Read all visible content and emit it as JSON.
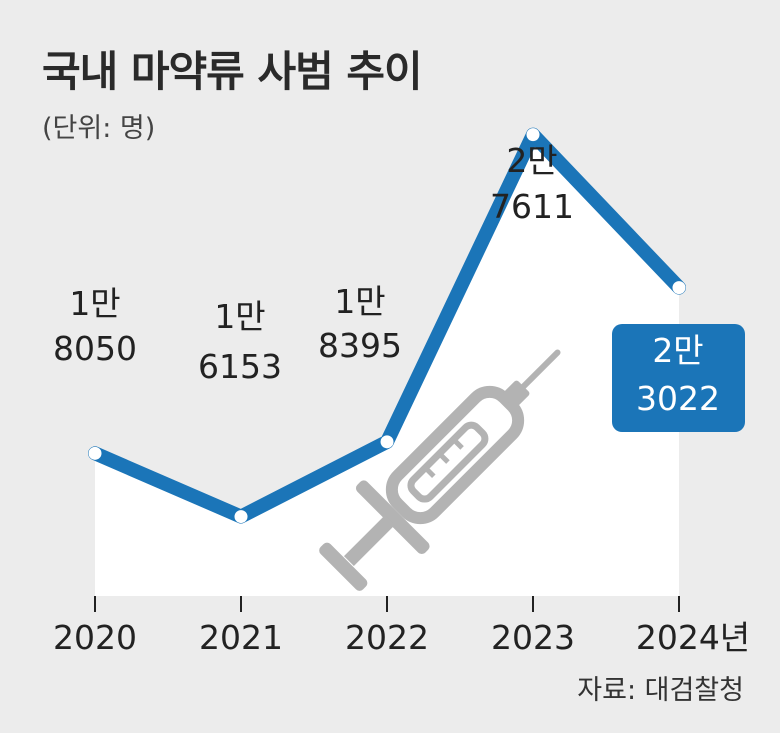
{
  "title": "국내 마약류 사범 추이",
  "unit_label": "(단위: 명)",
  "source": "자료: 대검찰청",
  "colors": {
    "background": "#ececec",
    "area": "#ffffff",
    "line": "#1b75b8",
    "highlight_box": "#1b75b8",
    "syringe": "#b3b3b3"
  },
  "icons": [
    "syringe-icon"
  ],
  "chart_data": {
    "type": "line",
    "title": "국내 마약류 사범 추이",
    "unit": "명",
    "categories": [
      "2020",
      "2021",
      "2022",
      "2023",
      "2024년"
    ],
    "values": [
      18050,
      16153,
      18395,
      27611,
      23022
    ],
    "data_labels": [
      [
        "1만",
        "8050"
      ],
      [
        "1만",
        "6153"
      ],
      [
        "1만",
        "8395"
      ],
      [
        "2만",
        "7611"
      ],
      [
        "2만",
        "3022"
      ]
    ],
    "highlight_index": 4,
    "ylim": [
      0,
      30000
    ],
    "grid": false,
    "legend": "none"
  }
}
